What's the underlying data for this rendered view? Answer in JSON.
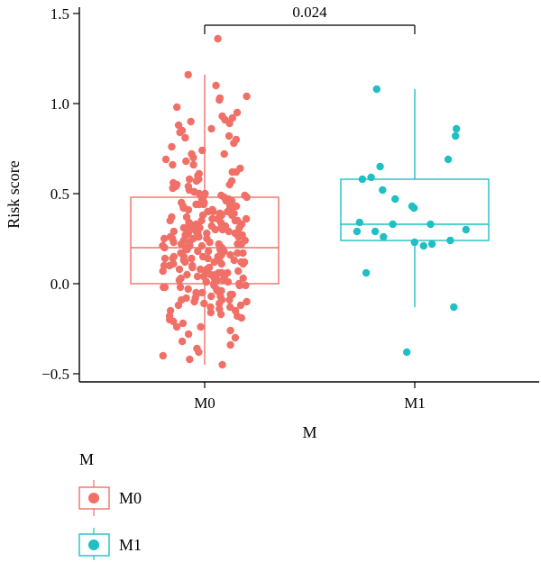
{
  "chart_data": {
    "type": "boxplot",
    "xlabel": "M",
    "ylabel": "Risk score",
    "ylim": [
      -0.55,
      1.55
    ],
    "yticks": [
      "−0.5",
      "0.0",
      "0.5",
      "1.0",
      "1.5"
    ],
    "ytick_values": [
      -0.5,
      0.0,
      0.5,
      1.0,
      1.5
    ],
    "categories": [
      "M0",
      "M1"
    ],
    "colors": {
      "M0": "#f07068",
      "M1": "#1fbfc4"
    },
    "series": [
      {
        "name": "M0",
        "box": {
          "whisker_low": -0.45,
          "q1": 0.0,
          "median": 0.2,
          "q3": 0.48,
          "whisker_high": 1.16
        },
        "points": [
          1.36,
          1.16,
          1.1,
          1.04,
          1.03,
          1.02,
          0.98,
          0.95,
          0.93,
          0.92,
          0.91,
          0.9,
          0.89,
          0.88,
          0.86,
          0.85,
          0.84,
          0.82,
          0.8,
          0.78,
          0.76,
          0.74,
          0.72,
          0.7,
          0.68,
          0.66,
          0.64,
          0.62,
          0.6,
          0.58,
          0.57,
          0.55,
          0.54,
          0.52,
          0.51,
          0.5,
          0.49,
          0.47,
          0.46,
          0.45,
          0.44,
          0.43,
          0.42,
          0.41,
          0.4,
          0.39,
          0.38,
          0.37,
          0.36,
          0.35,
          0.34,
          0.33,
          0.32,
          0.31,
          0.3,
          0.29,
          0.28,
          0.27,
          0.26,
          0.25,
          0.24,
          0.23,
          0.22,
          0.21,
          0.2,
          0.19,
          0.18,
          0.17,
          0.16,
          0.15,
          0.14,
          0.13,
          0.12,
          0.11,
          0.1,
          0.09,
          0.08,
          0.07,
          0.06,
          0.05,
          0.04,
          0.03,
          0.02,
          0.01,
          0.0,
          -0.01,
          -0.02,
          -0.03,
          -0.04,
          -0.05,
          -0.06,
          -0.07,
          -0.08,
          -0.09,
          -0.1,
          -0.11,
          -0.12,
          -0.13,
          -0.14,
          -0.15,
          -0.16,
          -0.17,
          -0.18,
          -0.19,
          -0.2,
          -0.22,
          -0.24,
          -0.26,
          -0.28,
          -0.3,
          -0.32,
          -0.34,
          -0.36,
          -0.38,
          -0.4,
          -0.42,
          -0.45,
          0.62,
          0.55,
          0.48,
          0.41,
          0.35,
          0.28,
          0.21,
          0.15,
          0.08,
          0.02,
          -0.04,
          -0.11,
          0.44,
          0.36,
          0.27,
          0.19,
          0.11,
          0.05,
          -0.02,
          0.39,
          0.31,
          0.23,
          0.16,
          0.09,
          0.51,
          0.43,
          0.33,
          0.25,
          0.18,
          0.12,
          0.06,
          0.01,
          -0.06,
          -0.13,
          0.58,
          0.47,
          0.38,
          0.29,
          0.22,
          0.14,
          0.07,
          0.0,
          -0.08,
          -0.15,
          -0.21,
          0.66,
          0.53,
          0.4,
          0.3,
          0.2,
          0.1,
          0.03,
          -0.05,
          -0.12,
          0.34,
          0.26,
          0.17,
          0.09,
          -0.01,
          -0.09,
          0.42,
          0.32,
          0.24,
          0.13,
          0.04,
          -0.03,
          0.46,
          0.37,
          0.28,
          0.18,
          0.08,
          0.49,
          0.39,
          0.27,
          0.15,
          0.06,
          -0.02,
          0.56,
          0.45,
          0.35,
          0.25,
          0.16,
          0.05,
          -0.07,
          0.72,
          0.61,
          0.5,
          0.41,
          0.31,
          0.22,
          0.12,
          0.03,
          -0.06,
          -0.18,
          0.81,
          0.69,
          0.57,
          0.44,
          0.33,
          0.24,
          0.14,
          0.04,
          -0.1,
          -0.24,
          0.26,
          0.19,
          0.11,
          0.02,
          0.36,
          0.29,
          0.21,
          0.13,
          0.07,
          0.54,
          0.47,
          0.4,
          0.3,
          0.23,
          0.1,
          -0.01,
          0.32,
          0.2,
          0.15,
          0.27,
          0.38,
          0.48,
          0.17,
          0.25,
          0.35,
          0.08,
          0.14,
          0.22,
          0.31,
          0.43,
          0.12,
          0.21,
          0.28,
          0.01,
          -0.04,
          -0.09
        ]
      },
      {
        "name": "M1",
        "box": {
          "whisker_low": -0.13,
          "q1": 0.24,
          "median": 0.33,
          "q3": 0.58,
          "whisker_high": 1.08
        },
        "points": [
          1.08,
          0.86,
          0.82,
          0.69,
          0.65,
          0.59,
          0.58,
          0.52,
          0.47,
          0.43,
          0.42,
          0.34,
          0.33,
          0.33,
          0.3,
          0.29,
          0.29,
          0.26,
          0.24,
          0.23,
          0.22,
          0.21,
          0.06,
          -0.13,
          -0.38
        ]
      }
    ],
    "annotation": {
      "text": "0.024",
      "from": "M0",
      "to": "M1"
    },
    "legend": {
      "title": "M",
      "placement": "bottom-left",
      "entries": [
        "M0",
        "M1"
      ]
    }
  }
}
